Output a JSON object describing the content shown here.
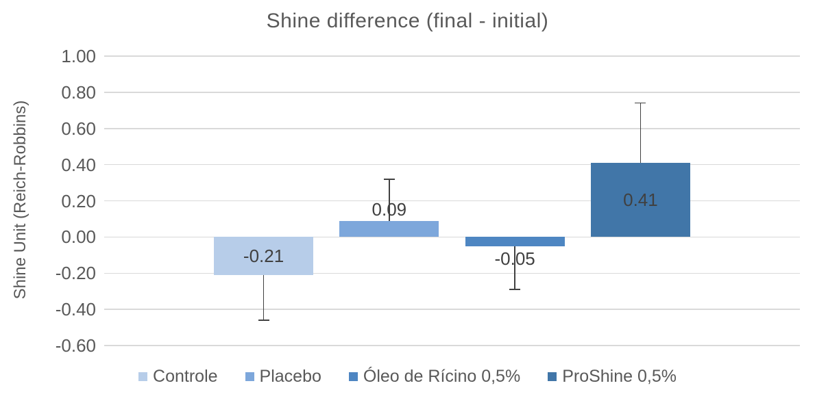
{
  "title": "Shine difference (final - initial)",
  "chart_data": {
    "type": "bar",
    "title": "Shine difference (final - initial)",
    "xlabel": "",
    "ylabel": "Shine Unit (Reich-Robbins)",
    "ylim": [
      -0.6,
      1.0
    ],
    "ytick_step": 0.2,
    "yticks": [
      "1.00",
      "0.80",
      "0.60",
      "0.40",
      "0.20",
      "0.00",
      "-0.20",
      "-0.40",
      "-0.60"
    ],
    "grid": true,
    "legend_position": "bottom",
    "categories": [
      ""
    ],
    "series": [
      {
        "name": "Controle",
        "value": -0.21,
        "label": "-0.21",
        "error": 0.25,
        "color": "#b7cde9"
      },
      {
        "name": "Placebo",
        "value": 0.09,
        "label": "0.09",
        "error": 0.23,
        "color": "#7da7db"
      },
      {
        "name": "Óleo de Rícino 0,5%",
        "value": -0.05,
        "label": "-0.05",
        "error": 0.24,
        "color": "#4e86c2"
      },
      {
        "name": "ProShine 0,5%",
        "value": 0.41,
        "label": "0.41",
        "error": 0.33,
        "color": "#4176a8"
      }
    ],
    "colors": {
      "title_text": "#595959",
      "axis_text": "#595959",
      "data_label_text": "#404040",
      "gridline": "#d9d9d9",
      "error_bar": "#404040",
      "background": "#ffffff"
    }
  }
}
